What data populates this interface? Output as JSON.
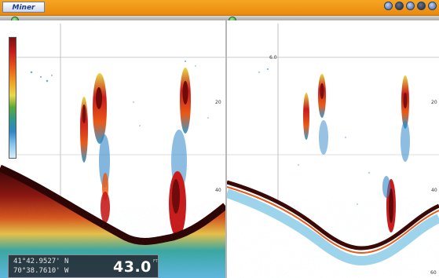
{
  "header": {
    "logo_text": "Miner",
    "right_icons": [
      "settings-icon",
      "power-icon",
      "globe-icon",
      "home-icon",
      "menu-icon"
    ]
  },
  "left_pane": {
    "knob_icon": "pane-menu-icon"
  },
  "right_pane": {
    "knob_icon": "pane-menu-icon",
    "scale_label": "6.0",
    "depth_labels": [
      "20",
      "40",
      "60"
    ]
  },
  "readout": {
    "latitude": "41°42.9527' N",
    "longitude": "70°38.7610' W",
    "depth": "43.0",
    "depth_unit": "FT"
  },
  "colors": {
    "topbar": "#f0981a",
    "strong_return": "#7a0f10",
    "medium_return": "#e85a18",
    "weak_return": "#2f86c8",
    "bottom": "#4a0e0c"
  }
}
